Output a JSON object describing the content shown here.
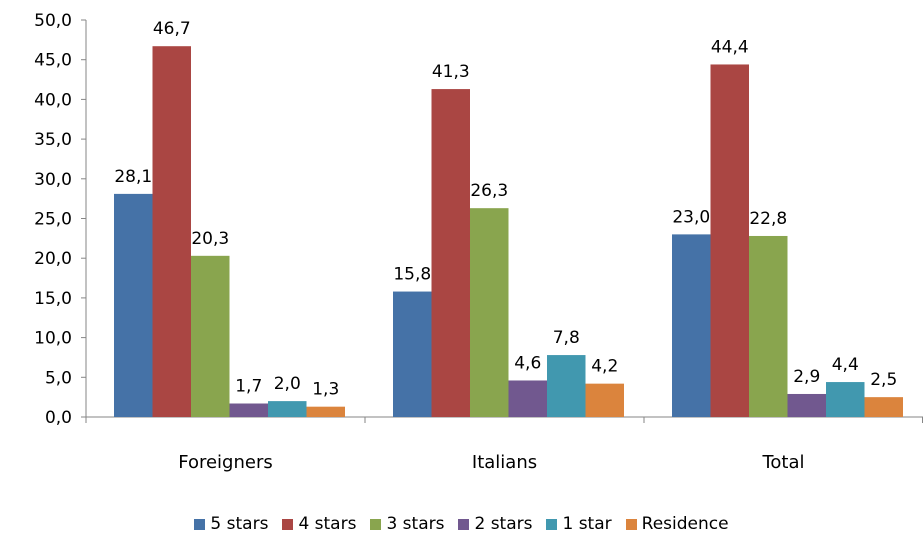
{
  "chart_data": {
    "type": "bar",
    "title": "",
    "xlabel": "",
    "ylabel": "",
    "ylim": [
      0,
      50
    ],
    "y_ticks": [
      "0,0",
      "5,0",
      "10,0",
      "15,0",
      "20,0",
      "25,0",
      "30,0",
      "35,0",
      "40,0",
      "45,0",
      "50,0"
    ],
    "categories": [
      "Foreigners",
      "Italians",
      "Total"
    ],
    "grid": false,
    "legend_position": "bottom",
    "series": [
      {
        "name": "5 stars",
        "color": "#4572A7",
        "values": [
          28.1,
          15.8,
          23.0
        ],
        "labels": [
          "28,1",
          "15,8",
          "23,0"
        ]
      },
      {
        "name": "4 stars",
        "color": "#AA4643",
        "values": [
          46.7,
          41.3,
          44.4
        ],
        "labels": [
          "46,7",
          "41,3",
          "44,4"
        ]
      },
      {
        "name": "3 stars",
        "color": "#89A54E",
        "values": [
          20.3,
          26.3,
          22.8
        ],
        "labels": [
          "20,3",
          "26,3",
          "22,8"
        ]
      },
      {
        "name": "2 stars",
        "color": "#71588F",
        "values": [
          1.7,
          4.6,
          2.9
        ],
        "labels": [
          "1,7",
          "4,6",
          "2,9"
        ]
      },
      {
        "name": "1 star",
        "color": "#4198AF",
        "values": [
          2.0,
          7.8,
          4.4
        ],
        "labels": [
          "2,0",
          "7,8",
          "4,4"
        ]
      },
      {
        "name": "Residence",
        "color": "#DB843D",
        "values": [
          1.3,
          4.2,
          2.5
        ],
        "labels": [
          "1,3",
          "4,2",
          "2,5"
        ]
      }
    ]
  }
}
